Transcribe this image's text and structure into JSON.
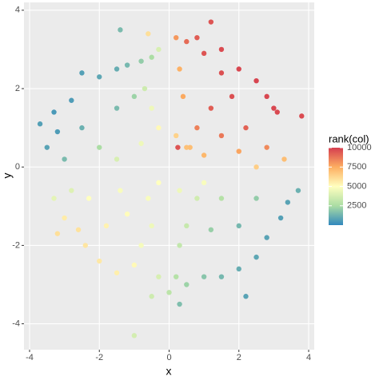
{
  "chart_data": {
    "type": "scatter",
    "x_label": "x",
    "y_label": "y",
    "legend_title": "rank(col)",
    "xlim": [
      -4.16,
      4.16
    ],
    "ylim": [
      -4.66,
      4.2
    ],
    "xticks": [
      -4,
      -2,
      0,
      2,
      4
    ],
    "yticks": [
      -4,
      -2,
      0,
      2,
      4
    ],
    "grid": true,
    "legend": "right",
    "colorscale": [
      "#3288bd",
      "#abdda4",
      "#ffffbf",
      "#fdae61",
      "#d53e4f"
    ],
    "clim": [
      1,
      10000
    ],
    "cticks": [
      2500,
      5000,
      7500,
      10000
    ],
    "x": [
      0.2,
      0.5,
      0.8,
      1.0,
      1.5,
      2.0,
      2.5,
      2.8,
      3.0,
      3.1,
      1.8,
      1.2,
      0.8,
      1.5,
      2.2,
      2.8,
      2.5,
      1.0,
      0.4,
      0.3,
      2.0,
      1.5,
      0.6,
      3.3,
      0.2,
      0.5,
      0.25,
      -0.3,
      -0.5,
      -0.8,
      -1.2,
      -1.5,
      -2.5,
      -2.0,
      -2.8,
      -3.3,
      -3.2,
      -2.5,
      -1.5,
      -1.0,
      -0.7,
      -0.5,
      -0.3,
      -2.0,
      -3.0,
      -3.5,
      -1.5,
      -0.8,
      -2.8,
      -3.3,
      -3.0,
      -3.2,
      -2.6,
      -2.4,
      -2.0,
      -1.5,
      -1.0,
      -1.8,
      -1.2,
      -0.6,
      -2.3,
      -0.5,
      -0.8,
      -1.4,
      -0.3,
      0.2,
      0.5,
      1.0,
      1.5,
      2.0,
      2.5,
      2.8,
      3.2,
      3.4,
      2.0,
      1.2,
      0.5,
      0.3,
      1.5,
      2.5,
      0.8,
      0.3,
      -0.3,
      0.0,
      2.2,
      0.3,
      -0.5,
      1.0,
      -1.0,
      -3.7,
      3.8,
      1.2,
      -1.4,
      3.7,
      -0.6
    ],
    "y": [
      3.3,
      3.2,
      3.3,
      2.9,
      3.0,
      2.5,
      2.2,
      1.8,
      1.5,
      1.4,
      1.8,
      1.5,
      1.0,
      0.8,
      1.0,
      0.5,
      0.0,
      0.3,
      1.8,
      2.5,
      0.4,
      2.4,
      0.5,
      0.2,
      0.8,
      0.5,
      0.5,
      3.0,
      2.8,
      2.7,
      2.6,
      2.5,
      2.4,
      2.3,
      1.7,
      1.4,
      0.9,
      1.0,
      1.5,
      1.8,
      2.0,
      1.5,
      1.0,
      0.5,
      0.2,
      0.5,
      0.2,
      0.6,
      -0.6,
      -0.8,
      -1.3,
      -1.7,
      -1.6,
      -2.0,
      -2.4,
      -2.7,
      -2.5,
      -1.5,
      -1.2,
      -0.8,
      -0.8,
      -1.5,
      -2.0,
      -0.6,
      -0.4,
      -2.8,
      -3.0,
      -2.8,
      -2.8,
      -2.6,
      -2.3,
      -1.8,
      -1.3,
      -0.9,
      -1.5,
      -1.6,
      -1.5,
      -2.0,
      -0.8,
      -0.8,
      -0.8,
      -0.6,
      -2.8,
      -3.2,
      -3.3,
      -3.5,
      -3.3,
      -0.4,
      -4.3,
      1.1,
      1.3,
      3.7,
      3.5,
      -0.6,
      3.4
    ],
    "color_values": [
      8000,
      9000,
      9300,
      9500,
      9700,
      9800,
      9850,
      9800,
      9800,
      9750,
      9600,
      9300,
      8500,
      8700,
      9200,
      8300,
      6500,
      7200,
      7600,
      7400,
      7700,
      9600,
      7000,
      7000,
      6400,
      6900,
      9500,
      3800,
      2500,
      2000,
      1400,
      1100,
      700,
      900,
      600,
      500,
      600,
      1200,
      1500,
      2200,
      3500,
      4500,
      5200,
      2500,
      1500,
      800,
      3800,
      4500,
      4000,
      4200,
      5600,
      6000,
      5900,
      5800,
      5700,
      5500,
      5200,
      5400,
      5100,
      4800,
      5000,
      4500,
      4700,
      4800,
      5000,
      2800,
      2200,
      1800,
      1400,
      1100,
      900,
      800,
      700,
      800,
      1400,
      2100,
      3300,
      3200,
      2800,
      2000,
      3600,
      4500,
      3800,
      3000,
      800,
      1600,
      3500,
      4800,
      3700,
      700,
      9700,
      9500,
      1500,
      1200,
      6000
    ]
  }
}
